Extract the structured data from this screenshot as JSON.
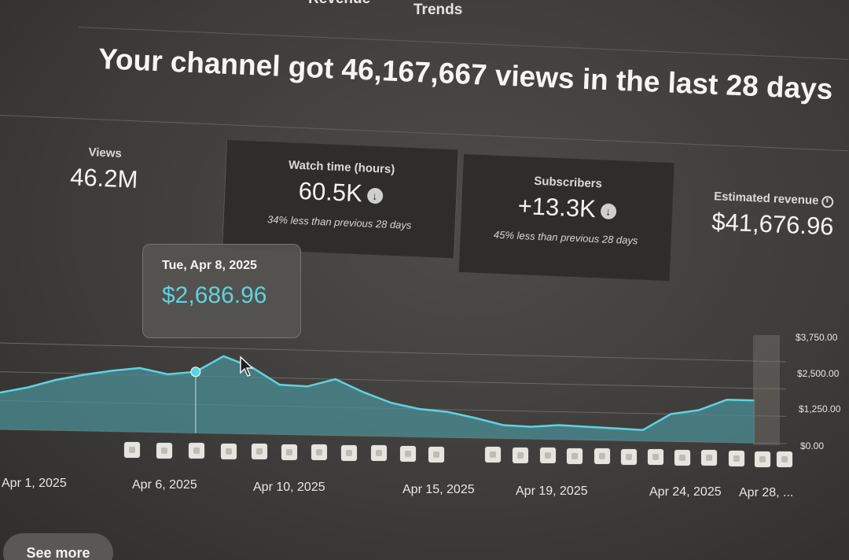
{
  "tabs": [
    {
      "label": "Revenue"
    },
    {
      "label": "Trends"
    }
  ],
  "headline": "Your channel got 46,167,667 views in the last 28 days",
  "cards": {
    "views": {
      "label": "Views",
      "value": "46.2M"
    },
    "watch_time": {
      "label": "Watch time (hours)",
      "value": "60.5K",
      "note": "34% less than previous 28 days",
      "trend_icon": "arrow-down-icon"
    },
    "subscribers": {
      "label": "Subscribers",
      "value": "+13.3K",
      "note": "45% less than previous 28 days",
      "trend_icon": "arrow-down-icon"
    },
    "revenue": {
      "label": "Estimated revenue",
      "value": "$41,676.96",
      "info_icon": "clock-icon"
    }
  },
  "tooltip": {
    "date": "Tue, Apr 8, 2025",
    "value": "$2,686.96"
  },
  "see_more_label": "See more",
  "colors": {
    "accent": "#5fd2e0",
    "area_fill": "#4a8f95",
    "card_bg": "#2e2d2c"
  },
  "chart_data": {
    "type": "area",
    "title": "",
    "xlabel": "",
    "ylabel": "",
    "ylim": [
      0,
      3750
    ],
    "y_ticks": [
      "$3,750.00",
      "$2,500.00",
      "$1,250.00",
      "$0.00"
    ],
    "x_tick_labels": [
      "Apr 1, 2025",
      "Apr 6, 2025",
      "Apr 10, 2025",
      "Apr 15, 2025",
      "Apr 19, 2025",
      "Apr 24, 2025",
      "Apr 28, ..."
    ],
    "x": [
      "Apr 1",
      "Apr 2",
      "Apr 3",
      "Apr 4",
      "Apr 5",
      "Apr 6",
      "Apr 7",
      "Apr 8",
      "Apr 9",
      "Apr 10",
      "Apr 11",
      "Apr 12",
      "Apr 13",
      "Apr 14",
      "Apr 15",
      "Apr 16",
      "Apr 17",
      "Apr 18",
      "Apr 19",
      "Apr 20",
      "Apr 21",
      "Apr 22",
      "Apr 23",
      "Apr 24",
      "Apr 25",
      "Apr 26",
      "Apr 27",
      "Apr 28"
    ],
    "series": [
      {
        "values": [
          1600,
          1850,
          2200,
          2450,
          2650,
          2800,
          2550,
          2687,
          3400,
          2950,
          2200,
          2150,
          2500,
          1950,
          1500,
          1250,
          1150,
          900,
          600,
          550,
          650,
          600,
          550,
          500,
          1250,
          1450,
          1950,
          1950
        ]
      }
    ],
    "highlight_index": 7,
    "grid": true,
    "legend": "none"
  }
}
